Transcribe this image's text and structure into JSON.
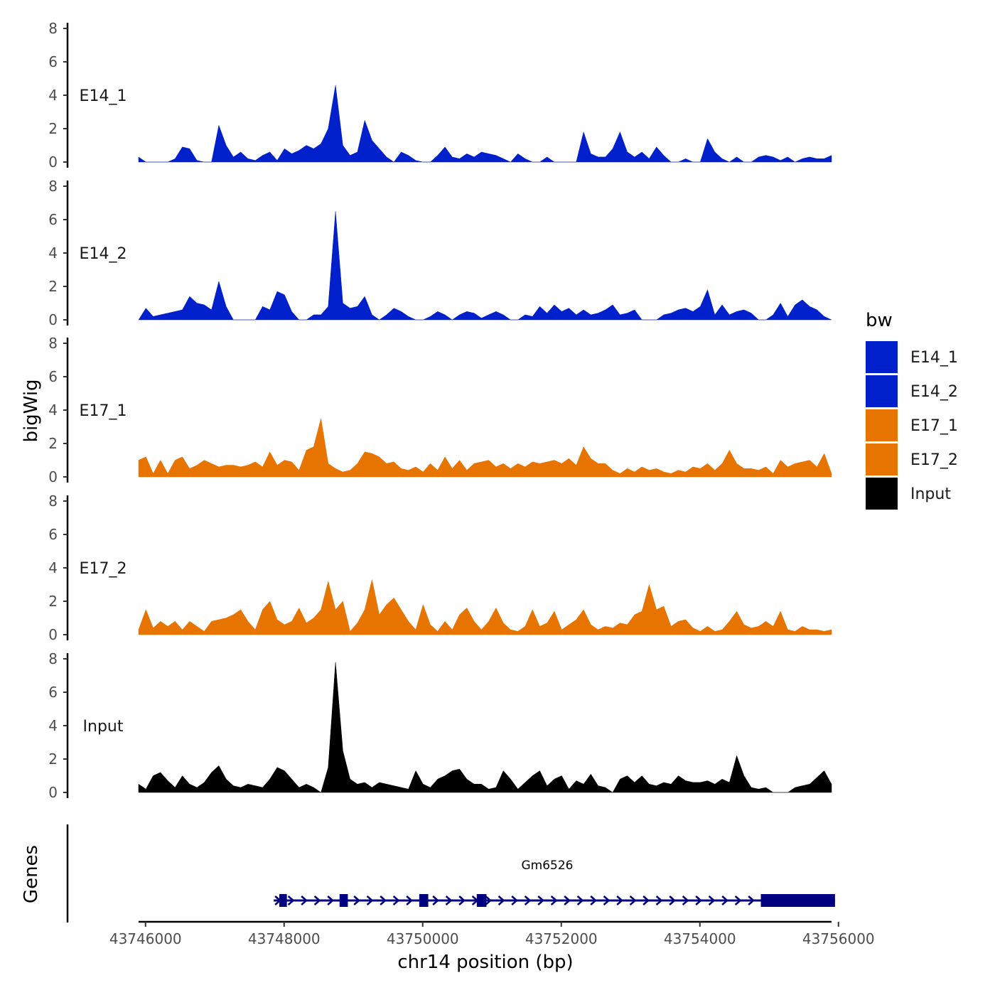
{
  "chart_data": {
    "type": "area",
    "ylabel": "bigWig",
    "xlabel": "chr14 position (bp)",
    "xlim": [
      43745900,
      43755900
    ],
    "ylim": [
      0,
      8
    ],
    "yticks": [
      "0",
      "2",
      "4",
      "6",
      "8"
    ],
    "xticks": [
      {
        "value": 43746000,
        "label": "43746000"
      },
      {
        "value": 43748000,
        "label": "43748000"
      },
      {
        "value": 43750000,
        "label": "43750000"
      },
      {
        "value": 43752000,
        "label": "43752000"
      },
      {
        "value": 43754000,
        "label": "43754000"
      },
      {
        "value": 43756000,
        "label": "43756000"
      }
    ],
    "series": [
      {
        "name": "E14_1",
        "color": "#0020CC",
        "x_start": 43745900,
        "x_end": 43755900,
        "values": [
          0.3,
          0,
          0,
          0,
          0,
          0.2,
          0.9,
          0.8,
          0.1,
          0,
          0,
          2.2,
          1.0,
          0.3,
          0.6,
          0.2,
          0.1,
          0.4,
          0.6,
          0.1,
          0.8,
          0.5,
          0.7,
          1.0,
          0.8,
          1.1,
          2.0,
          4.6,
          1.0,
          0.4,
          0.6,
          2.5,
          1.3,
          0.8,
          0.3,
          0,
          0.6,
          0.4,
          0.1,
          0,
          0,
          0.4,
          0.9,
          0.3,
          0.2,
          0.5,
          0.3,
          0.6,
          0.5,
          0.4,
          0.2,
          0,
          0.5,
          0.2,
          0,
          0,
          0.3,
          0,
          0,
          0,
          0,
          1.8,
          0.5,
          0.3,
          0.3,
          0.8,
          1.8,
          0.6,
          0.3,
          0.6,
          0.2,
          0.9,
          0.4,
          0,
          0,
          0.2,
          0,
          0,
          1.4,
          0.6,
          0.2,
          0,
          0.3,
          0,
          0,
          0.3,
          0.4,
          0.3,
          0.1,
          0.3,
          0,
          0.2,
          0.3,
          0.2,
          0.2,
          0.4
        ]
      },
      {
        "name": "E14_2",
        "color": "#0020CC",
        "x_start": 43745900,
        "x_end": 43755900,
        "values": [
          0,
          0.7,
          0.2,
          0.3,
          0.4,
          0.5,
          0.6,
          1.4,
          1.0,
          0.9,
          0.6,
          2.3,
          0.8,
          0,
          0,
          0,
          0,
          0.8,
          0.6,
          1.7,
          1.5,
          0.5,
          0,
          0,
          0.3,
          0.3,
          0.8,
          6.5,
          1.0,
          0.7,
          0.8,
          1.4,
          0.3,
          0,
          0.3,
          0.7,
          0.5,
          0.2,
          0,
          0,
          0.2,
          0.5,
          0.3,
          0,
          0.3,
          0.5,
          0.4,
          0.1,
          0.3,
          0.5,
          0.3,
          0,
          0,
          0.3,
          0.2,
          0.8,
          0.4,
          0.9,
          0.5,
          0.7,
          0.3,
          0.6,
          0.3,
          0.4,
          0.6,
          0.9,
          0.3,
          0.4,
          0.6,
          0,
          0,
          0,
          0.3,
          0.4,
          0.6,
          0.7,
          0.5,
          0.8,
          1.8,
          0.3,
          0.9,
          0.3,
          0.5,
          0.6,
          0.4,
          0,
          0,
          0.3,
          1.0,
          0.2,
          0.9,
          1.2,
          0.8,
          0.6,
          0.2,
          0
        ]
      },
      {
        "name": "E17_1",
        "color": "#E87400",
        "x_start": 43745900,
        "x_end": 43755900,
        "values": [
          1.0,
          1.2,
          0.2,
          1.0,
          0.2,
          1.0,
          1.2,
          0.5,
          0.7,
          1.0,
          0.8,
          0.6,
          0.7,
          0.7,
          0.6,
          0.7,
          0.9,
          0.6,
          1.5,
          0.7,
          1.0,
          0.9,
          0.4,
          1.6,
          1.8,
          3.5,
          0.8,
          0.5,
          0.3,
          0.4,
          0.8,
          1.5,
          1.4,
          1.2,
          0.8,
          0.9,
          0.5,
          0.4,
          0.6,
          0.3,
          0.8,
          0.4,
          1.2,
          0.5,
          1.0,
          0.4,
          0.8,
          0.9,
          1.0,
          0.6,
          0.8,
          0.5,
          0.8,
          0.6,
          0.9,
          0.8,
          0.9,
          1.0,
          0.8,
          1.1,
          0.7,
          1.8,
          1.1,
          0.8,
          0.8,
          0.4,
          0.2,
          0.5,
          0.3,
          0.6,
          0.4,
          0.5,
          0.3,
          0.2,
          0.4,
          0.3,
          0.6,
          0.5,
          0.8,
          0.4,
          0.8,
          1.6,
          0.8,
          0.5,
          0.5,
          0.4,
          0.6,
          0.2,
          1.0,
          0.6,
          0.8,
          0.9,
          1.0,
          0.6,
          1.4,
          0.2
        ]
      },
      {
        "name": "E17_2",
        "color": "#E87400",
        "x_start": 43745900,
        "x_end": 43755900,
        "values": [
          0.3,
          1.5,
          0.4,
          0.8,
          0.5,
          0.8,
          0.3,
          0.8,
          0.5,
          0.2,
          0.8,
          0.9,
          1.0,
          1.2,
          1.5,
          0.8,
          0.3,
          1.5,
          2.0,
          0.9,
          0.6,
          0.8,
          1.6,
          0.7,
          1.0,
          1.5,
          3.2,
          1.5,
          2.0,
          0.2,
          0.7,
          1.5,
          3.3,
          1.2,
          1.8,
          2.2,
          1.5,
          0.8,
          0.3,
          1.8,
          0.6,
          0.2,
          0.8,
          0.3,
          1.2,
          1.6,
          0.8,
          0.3,
          0.8,
          1.6,
          0.7,
          0.3,
          0.2,
          0.5,
          1.5,
          0.5,
          0.7,
          1.4,
          0.3,
          0.6,
          0.9,
          1.5,
          0.6,
          0.3,
          0.5,
          0.4,
          0.7,
          0.6,
          1.2,
          1.4,
          3.0,
          1.5,
          1.7,
          0.5,
          0.8,
          0.9,
          0.4,
          0.2,
          0.5,
          0.2,
          0.3,
          0.8,
          1.4,
          0.6,
          0.4,
          0.5,
          0.8,
          0.5,
          1.4,
          0.3,
          0.2,
          0.5,
          0.3,
          0.3,
          0.2,
          0.3
        ]
      },
      {
        "name": "Input",
        "color": "#000000",
        "x_start": 43745900,
        "x_end": 43755900,
        "values": [
          0.5,
          0.2,
          1.0,
          1.2,
          0.7,
          0.3,
          1.0,
          0.5,
          0.3,
          0.6,
          1.2,
          1.6,
          0.8,
          0.4,
          0.3,
          0.5,
          0.4,
          0.3,
          0.8,
          1.5,
          1.3,
          0.8,
          0.3,
          0.5,
          0.3,
          0,
          1.5,
          7.8,
          2.5,
          0.8,
          0.5,
          0.6,
          0.3,
          0.6,
          0.5,
          0.4,
          0.3,
          0.2,
          1.3,
          0.5,
          0.3,
          0.8,
          1.0,
          1.3,
          1.4,
          0.8,
          0.5,
          0.5,
          0.2,
          0.3,
          1.3,
          0.8,
          0.2,
          0.6,
          1.0,
          1.3,
          0.4,
          0.8,
          1.0,
          0.2,
          0.7,
          0.5,
          1.1,
          0.4,
          0.3,
          0,
          0.8,
          1.0,
          0.6,
          1.0,
          0.5,
          0.4,
          0.6,
          0.5,
          1.0,
          0.7,
          0.6,
          0.6,
          0.7,
          0.5,
          0.8,
          0.6,
          2.2,
          1.0,
          0.3,
          0.2,
          0.3,
          0,
          0,
          0,
          0.3,
          0.4,
          0.5,
          0.9,
          1.3,
          0.5
        ]
      }
    ],
    "gene": {
      "name": "Gm6526",
      "color": "#000080",
      "start": 43747850,
      "end": 43755950,
      "strand": "+",
      "exons": [
        [
          43747930,
          43748040
        ],
        [
          43748800,
          43748920
        ],
        [
          43749950,
          43750080
        ],
        [
          43750780,
          43750920
        ],
        [
          43754880,
          43755950
        ]
      ]
    },
    "gene_panel_label": "Genes",
    "legend": {
      "title": "bw",
      "position": "right"
    }
  }
}
